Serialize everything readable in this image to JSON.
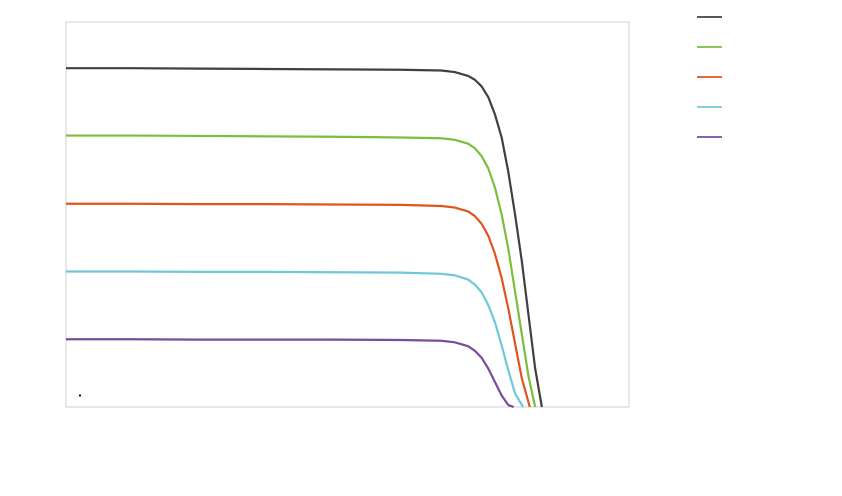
{
  "chart_data": {
    "type": "line",
    "title": "",
    "xlabel": "",
    "ylabel": "",
    "xlim": [
      0,
      42
    ],
    "ylim": [
      0,
      10
    ],
    "grid": false,
    "legend_position": "top-right",
    "series": [
      {
        "name": "",
        "color": "#404040",
        "x": [
          0,
          5,
          10,
          15,
          20,
          25,
          28,
          29,
          30,
          30.5,
          31,
          31.5,
          32,
          32.5,
          33,
          33.5,
          34,
          34.5,
          35,
          35.5
        ],
        "values": [
          8.8,
          8.8,
          8.79,
          8.78,
          8.77,
          8.76,
          8.74,
          8.7,
          8.6,
          8.5,
          8.33,
          8.05,
          7.6,
          7.0,
          6.1,
          5.0,
          3.8,
          2.4,
          1.0,
          0.0
        ]
      },
      {
        "name": "",
        "color": "#7cbe3c",
        "x": [
          0,
          5,
          10,
          15,
          20,
          25,
          28,
          29,
          30,
          30.5,
          31,
          31.5,
          32,
          32.5,
          33,
          33.5,
          34,
          34.5,
          35
        ],
        "values": [
          7.05,
          7.05,
          7.04,
          7.03,
          7.02,
          7.0,
          6.98,
          6.94,
          6.84,
          6.72,
          6.52,
          6.2,
          5.7,
          5.0,
          4.1,
          3.0,
          1.9,
          0.8,
          0.0
        ]
      },
      {
        "name": "",
        "color": "#e0541e",
        "x": [
          0,
          5,
          10,
          15,
          20,
          25,
          28,
          29,
          30,
          30.5,
          31,
          31.5,
          32,
          32.5,
          33,
          33.5,
          34,
          34.6
        ],
        "values": [
          5.28,
          5.28,
          5.27,
          5.27,
          5.26,
          5.25,
          5.22,
          5.18,
          5.08,
          4.96,
          4.76,
          4.45,
          3.98,
          3.35,
          2.55,
          1.65,
          0.75,
          0.0
        ]
      },
      {
        "name": "",
        "color": "#6ec8d8",
        "x": [
          0,
          5,
          10,
          15,
          20,
          25,
          28,
          29,
          30,
          30.5,
          31,
          31.5,
          32,
          32.5,
          33,
          33.5,
          34.1
        ],
        "values": [
          3.52,
          3.52,
          3.51,
          3.51,
          3.5,
          3.49,
          3.46,
          3.42,
          3.31,
          3.18,
          2.98,
          2.65,
          2.2,
          1.6,
          0.95,
          0.35,
          0.0
        ]
      },
      {
        "name": "",
        "color": "#7a4aa0",
        "x": [
          0,
          5,
          10,
          15,
          20,
          25,
          28,
          29,
          30,
          30.5,
          31,
          31.5,
          32,
          32.5,
          33,
          33.4
        ],
        "values": [
          1.76,
          1.76,
          1.75,
          1.75,
          1.75,
          1.74,
          1.72,
          1.68,
          1.58,
          1.46,
          1.28,
          1.0,
          0.65,
          0.3,
          0.05,
          0.0
        ]
      }
    ]
  }
}
